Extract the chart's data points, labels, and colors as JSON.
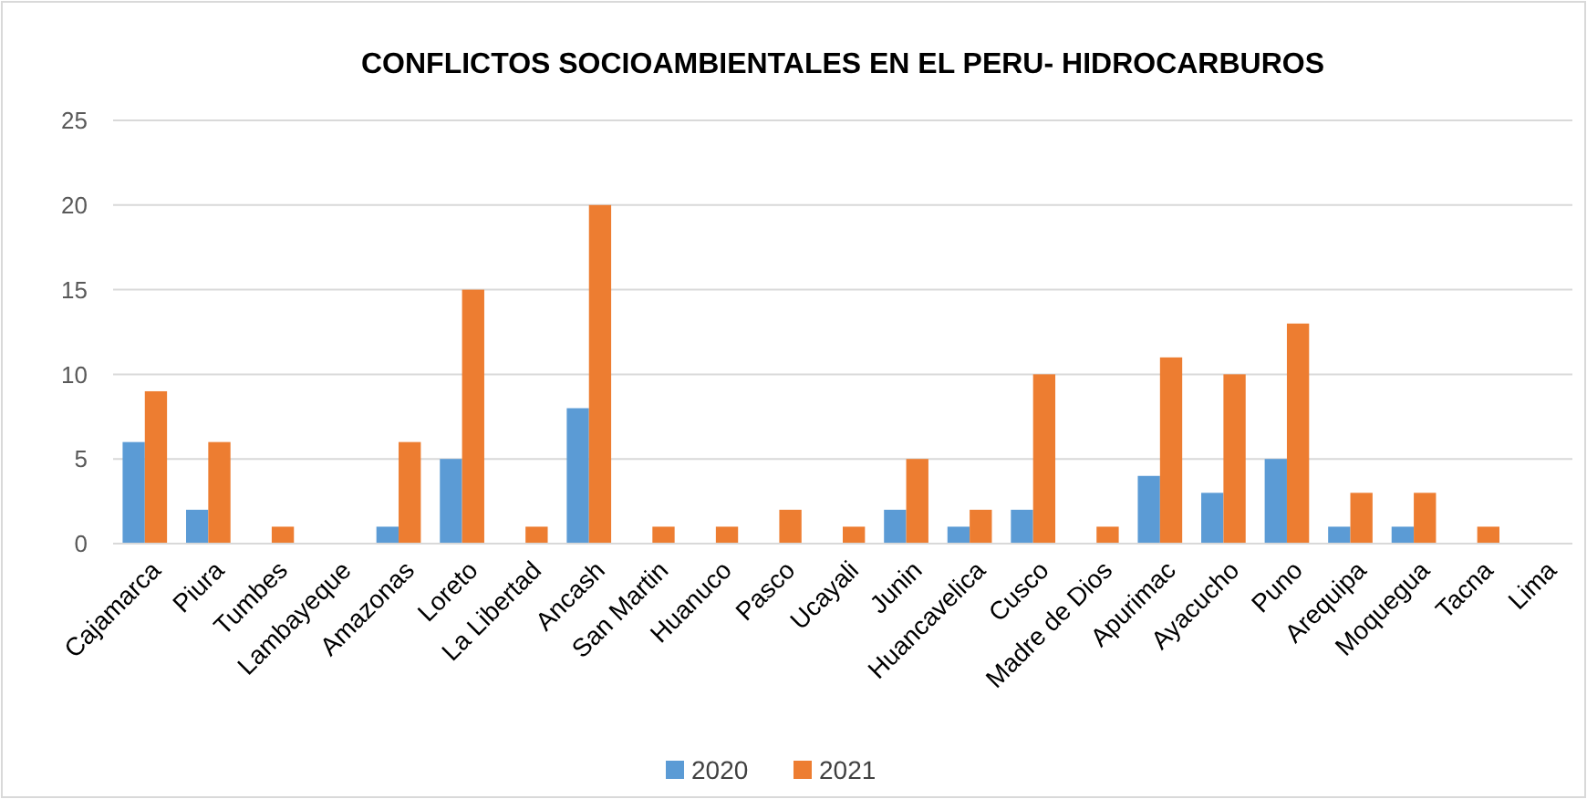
{
  "chart_data": {
    "type": "bar",
    "title": "CONFLICTOS SOCIOAMBIENTALES EN EL PERU- HIDROCARBUROS",
    "categories": [
      "Cajamarca",
      "Piura",
      "Tumbes",
      "Lambayeque",
      "Amazonas",
      "Loreto",
      "La Libertad",
      "Ancash",
      "San Martin",
      "Huanuco",
      "Pasco",
      "Ucayali",
      "Junin",
      "Huancavelica",
      "Cusco",
      "Madre de Dios",
      "Apurimac",
      "Ayacucho",
      "Puno",
      "Arequipa",
      "Moquegua",
      "Tacna",
      "Lima"
    ],
    "series": [
      {
        "name": "2020",
        "color": "#5b9bd5",
        "values": [
          6,
          2,
          0,
          0,
          1,
          5,
          0,
          8,
          0,
          0,
          0,
          0,
          2,
          1,
          2,
          0,
          4,
          3,
          5,
          1,
          1,
          0,
          0
        ]
      },
      {
        "name": "2021",
        "color": "#ed7d31",
        "values": [
          9,
          6,
          1,
          0,
          6,
          15,
          1,
          20,
          1,
          1,
          2,
          1,
          5,
          2,
          10,
          1,
          11,
          10,
          13,
          3,
          3,
          1,
          0
        ]
      }
    ],
    "ylim": [
      0,
      25
    ],
    "yticks": [
      0,
      5,
      10,
      15,
      20,
      25
    ],
    "grid": "y",
    "legend": "bottom"
  }
}
